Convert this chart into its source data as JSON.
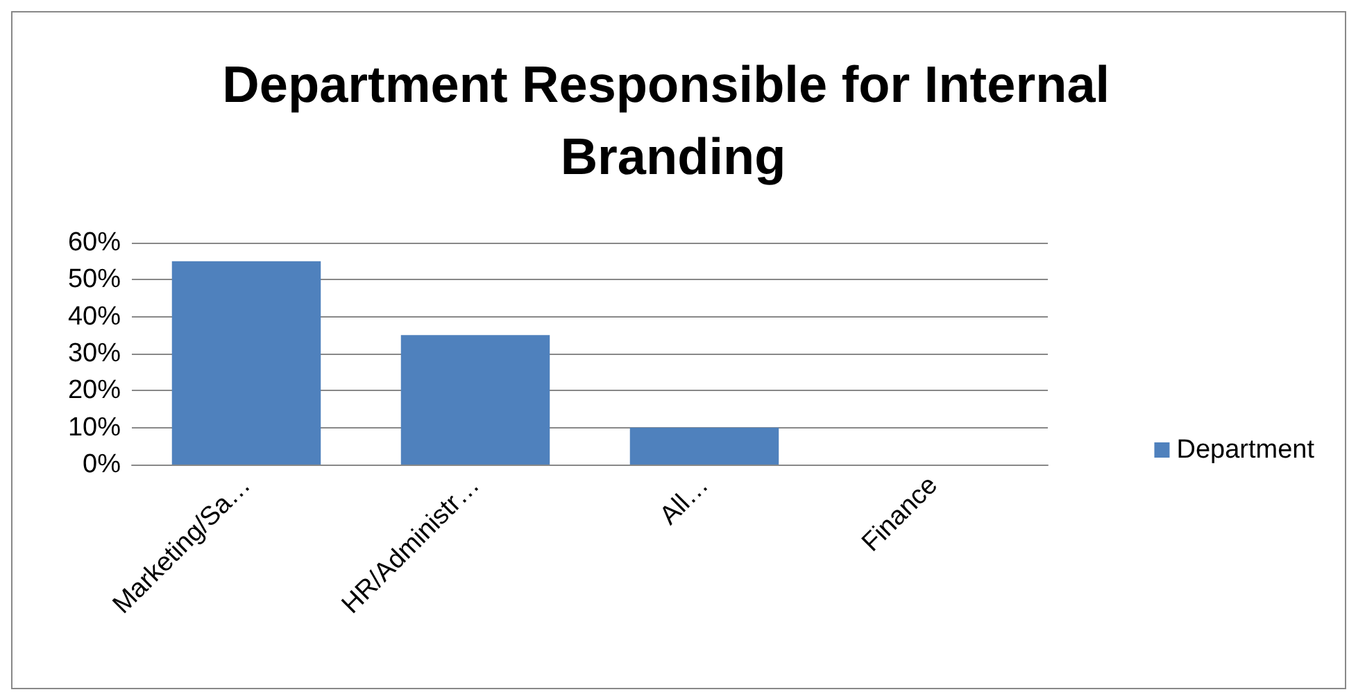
{
  "chart_data": {
    "type": "bar",
    "title": "Department Responsible for Internal Branding",
    "categories": [
      "Marketing/Sa…",
      "HR/Administr…",
      "All…",
      "Finance"
    ],
    "series": [
      {
        "name": "Department",
        "color": "#4f81bd",
        "values": [
          55,
          35,
          10,
          0
        ]
      }
    ],
    "ylim": [
      0,
      60
    ],
    "yticks": [
      {
        "value": 0,
        "label": "0%"
      },
      {
        "value": 10,
        "label": "10%"
      },
      {
        "value": 20,
        "label": "20%"
      },
      {
        "value": 30,
        "label": "30%"
      },
      {
        "value": 40,
        "label": "40%"
      },
      {
        "value": 50,
        "label": "50%"
      },
      {
        "value": 60,
        "label": "60%"
      }
    ],
    "grid": "y",
    "legend": "right"
  }
}
